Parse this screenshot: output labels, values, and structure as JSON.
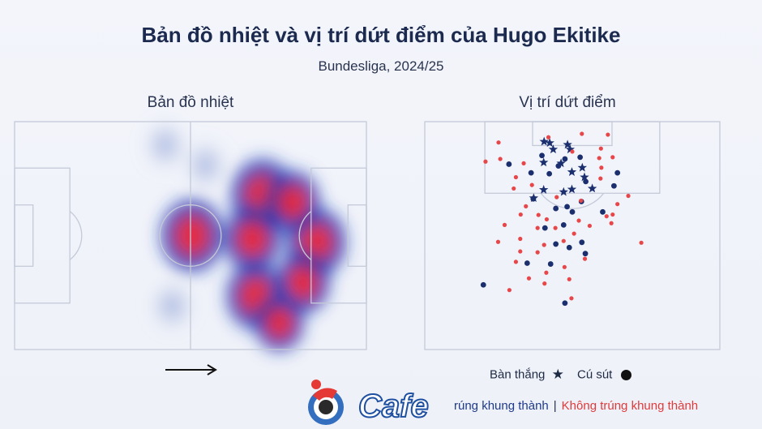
{
  "header": {
    "title": "Bản đồ nhiệt và vị trí dứt điểm của Hugo Ekitike",
    "subtitle": "Bundesliga, 2024/25"
  },
  "panels": {
    "heatmap_title": "Bản đồ nhiệt",
    "shots_title": "Vị trí dứt điểm"
  },
  "legend": {
    "goal_label": "Bàn thắng",
    "shot_label": "Cú sút",
    "on_target_label": "rúng khung thành",
    "separator": "|",
    "off_target_label": "Không trúng khung thành"
  },
  "logo": {
    "text": "Cafe"
  },
  "colors": {
    "on_target": "#1b2f6e",
    "off_target": "#e8474a",
    "heat_low": "#c8d2ea",
    "heat_mid": "#1d3bb5",
    "heat_high": "#e3243b",
    "pitch_line": "#c4cad8"
  },
  "chart_data": [
    {
      "type": "heatmap",
      "title": "Bản đồ nhiệt",
      "direction_of_attack": "right",
      "pitch": {
        "length": 105,
        "width": 68
      },
      "hotspots": [
        {
          "x": 53,
          "y": 34,
          "intensity": 1.0
        },
        {
          "x": 74,
          "y": 22,
          "intensity": 1.0
        },
        {
          "x": 71,
          "y": 35,
          "intensity": 0.8
        },
        {
          "x": 72,
          "y": 52,
          "intensity": 0.85
        },
        {
          "x": 90,
          "y": 36,
          "intensity": 0.9
        },
        {
          "x": 83,
          "y": 24,
          "intensity": 0.7
        },
        {
          "x": 86,
          "y": 48,
          "intensity": 0.7
        },
        {
          "x": 79,
          "y": 60,
          "intensity": 0.55
        },
        {
          "x": 45,
          "y": 7,
          "intensity": 0.2
        },
        {
          "x": 47,
          "y": 55,
          "intensity": 0.25
        },
        {
          "x": 57,
          "y": 13,
          "intensity": 0.25
        }
      ]
    },
    {
      "type": "scatter",
      "title": "Vị trí dứt điểm",
      "pitch": {
        "length": 105,
        "width": 68
      },
      "x_unit": "metres from left touchline",
      "y_unit": "metres from goal line",
      "series": [
        {
          "name": "Bàn thắng",
          "marker": "star",
          "on_target": true,
          "points": [
            [
              27.5,
              4.6
            ],
            [
              28.8,
              4.9
            ],
            [
              32.9,
              5.3
            ],
            [
              29.6,
              6.4
            ],
            [
              33.5,
              6.4
            ],
            [
              27.4,
              9.4
            ],
            [
              31.4,
              9.6
            ],
            [
              36.3,
              10.6
            ],
            [
              33.9,
              11.6
            ],
            [
              36.8,
              12.8
            ],
            [
              27.4,
              15.7
            ],
            [
              33.9,
              15.6
            ],
            [
              38.6,
              15.4
            ],
            [
              32.0,
              16.2
            ],
            [
              25.1,
              17.6
            ]
          ]
        },
        {
          "name": "Cú sút",
          "marker": "circle",
          "on_target": true,
          "points": [
            [
              19.4,
              9.8
            ],
            [
              27.0,
              7.8
            ],
            [
              32.3,
              8.6
            ],
            [
              35.8,
              8.2
            ],
            [
              30.8,
              10.2
            ],
            [
              24.5,
              11.8
            ],
            [
              37.1,
              13.8
            ],
            [
              43.6,
              14.8
            ],
            [
              44.4,
              11.8
            ],
            [
              28.7,
              12.0
            ],
            [
              25.0,
              17.8
            ],
            [
              32.8,
              19.6
            ],
            [
              36.1,
              18.4
            ],
            [
              30.2,
              20.0
            ],
            [
              34.0,
              20.8
            ],
            [
              41.0,
              20.8
            ],
            [
              32.0,
              23.8
            ],
            [
              30.2,
              28.2
            ],
            [
              36.2,
              27.8
            ],
            [
              37.0,
              30.4
            ],
            [
              29.0,
              32.8
            ],
            [
              23.6,
              32.6
            ],
            [
              13.5,
              37.6
            ],
            [
              32.3,
              41.8
            ],
            [
              33.3,
              29.0
            ],
            [
              27.7,
              24.5
            ]
          ]
        },
        {
          "name": "Cú sút",
          "marker": "circle",
          "on_target": false,
          "points": [
            [
              36.2,
              2.8
            ],
            [
              42.2,
              3.0
            ],
            [
              17.0,
              4.8
            ],
            [
              28.5,
              3.6
            ],
            [
              34.0,
              6.9
            ],
            [
              40.6,
              6.2
            ],
            [
              43.3,
              8.2
            ],
            [
              17.4,
              8.6
            ],
            [
              14.0,
              9.2
            ],
            [
              22.8,
              9.6
            ],
            [
              40.2,
              8.4
            ],
            [
              40.7,
              10.6
            ],
            [
              21.0,
              12.8
            ],
            [
              40.5,
              13.1
            ],
            [
              46.9,
              17.1
            ],
            [
              20.5,
              15.4
            ],
            [
              23.3,
              19.5
            ],
            [
              26.2,
              21.5
            ],
            [
              36.0,
              18.2
            ],
            [
              44.4,
              19.0
            ],
            [
              22.1,
              21.4
            ],
            [
              18.4,
              23.8
            ],
            [
              28.1,
              22.5
            ],
            [
              26.0,
              24.5
            ],
            [
              35.5,
              22.8
            ],
            [
              22.0,
              27.0
            ],
            [
              30.1,
              24.5
            ],
            [
              34.4,
              25.8
            ],
            [
              38.0,
              24.0
            ],
            [
              41.9,
              21.8
            ],
            [
              49.9,
              27.9
            ],
            [
              43.0,
              23.4
            ],
            [
              16.9,
              27.7
            ],
            [
              26.0,
              30.1
            ],
            [
              36.9,
              31.6
            ],
            [
              27.6,
              37.3
            ],
            [
              32.2,
              33.5
            ],
            [
              21.0,
              32.3
            ],
            [
              33.3,
              36.3
            ],
            [
              24.0,
              36.1
            ],
            [
              33.8,
              40.7
            ],
            [
              19.5,
              38.8
            ],
            [
              28.0,
              34.8
            ],
            [
              24.7,
              14.6
            ],
            [
              30.4,
              17.4
            ],
            [
              32.0,
              27.5
            ],
            [
              27.5,
              28.4
            ],
            [
              43.3,
              21.4
            ],
            [
              22.0,
              29.9
            ]
          ]
        }
      ]
    }
  ]
}
